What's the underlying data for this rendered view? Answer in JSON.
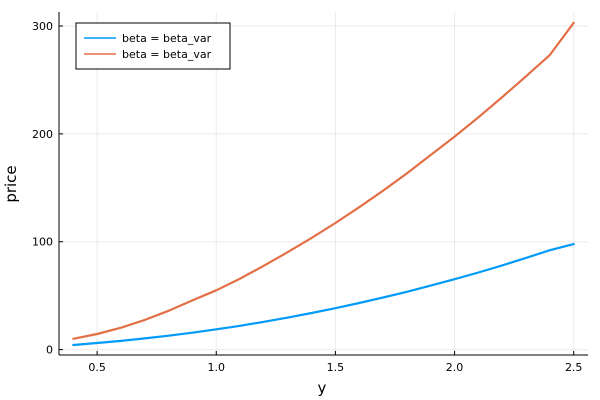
{
  "chart_data": {
    "type": "line",
    "title": "",
    "xlabel": "y",
    "ylabel": "price",
    "xlim": [
      0.34,
      2.56
    ],
    "ylim": [
      -5,
      313
    ],
    "x_ticks": [
      0.5,
      1.0,
      1.5,
      2.0,
      2.5
    ],
    "x_tick_labels": [
      "0.5",
      "1.0",
      "1.5",
      "2.0",
      "2.5"
    ],
    "y_ticks": [
      0,
      100,
      200,
      300
    ],
    "y_tick_labels": [
      "0",
      "100",
      "200",
      "300"
    ],
    "grid": true,
    "legend": "top-left",
    "series": [
      {
        "name": "beta = beta_var",
        "color": "#009af9",
        "x": [
          0.4,
          0.5,
          0.6,
          0.7,
          0.8,
          0.9,
          1.0,
          1.1,
          1.2,
          1.3,
          1.4,
          1.5,
          1.6,
          1.7,
          1.8,
          1.9,
          2.0,
          2.1,
          2.2,
          2.3,
          2.4,
          2.5
        ],
        "y": [
          4.3,
          6.1,
          8.1,
          10.4,
          12.9,
          15.7,
          18.8,
          22.1,
          25.8,
          29.7,
          33.9,
          38.4,
          43.2,
          48.3,
          53.6,
          59.3,
          65.3,
          71.5,
          78.1,
          85.0,
          92.2,
          97.8
        ]
      },
      {
        "name": "beta = beta_var",
        "color": "#e26f46",
        "x": [
          0.4,
          0.5,
          0.6,
          0.7,
          0.8,
          0.9,
          1.0,
          1.1,
          1.2,
          1.3,
          1.4,
          1.5,
          1.6,
          1.7,
          1.8,
          1.9,
          2.0,
          2.1,
          2.2,
          2.3,
          2.4,
          2.5
        ],
        "y": [
          10.0,
          14.5,
          20.3,
          27.5,
          36.0,
          45.6,
          55.0,
          65.8,
          77.8,
          90.4,
          103.6,
          117.4,
          132.0,
          147.3,
          163.4,
          180.4,
          197.5,
          215.4,
          234.1,
          253.4,
          273.2,
          303.0
        ]
      }
    ]
  }
}
